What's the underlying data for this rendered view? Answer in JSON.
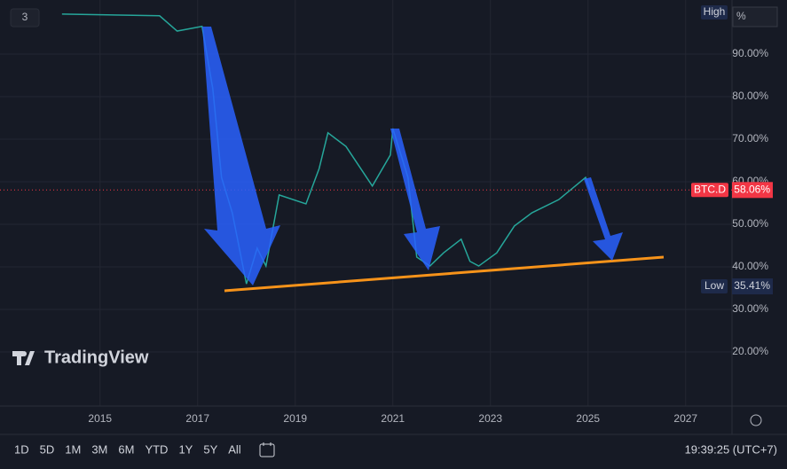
{
  "chart_data": {
    "type": "line",
    "x": [
      2014.22,
      2016.22,
      2016.58,
      2017.09,
      2017.31,
      2017.49,
      2017.71,
      2018.0,
      2018.22,
      2018.4,
      2018.67,
      2019.22,
      2019.49,
      2019.67,
      2020.04,
      2020.58,
      2020.95,
      2021.0,
      2021.31,
      2021.49,
      2021.76,
      2022.04,
      2022.4,
      2022.58,
      2022.76,
      2023.13,
      2023.49,
      2023.85,
      2024.4,
      2024.95,
      2025.04
    ],
    "series": [
      {
        "name": "BTC.D",
        "color": "#26a69a",
        "values": [
          99.4,
          99,
          95.4,
          96.5,
          81.9,
          61,
          52.7,
          36,
          44.4,
          40.2,
          56.9,
          54.8,
          63.1,
          71.5,
          68.3,
          59,
          66.3,
          72.5,
          61,
          42.3,
          40.2,
          43.3,
          46.5,
          41.3,
          40.2,
          43.3,
          49.6,
          52.7,
          55.8,
          61,
          58.06
        ]
      }
    ],
    "last": {
      "value": 58.06,
      "label": "58.06%"
    },
    "low": {
      "title": "Low",
      "value": 35.41,
      "label": "35.41%"
    },
    "high": "High",
    "scale_mode": "%",
    "xlim": [
      2012.95,
      2027.95
    ],
    "xticks": [
      2015,
      2017,
      2019,
      2021,
      2023,
      2025,
      2027
    ],
    "ylim": [
      7.3,
      102.7
    ],
    "yticks": [
      {
        "value": 20,
        "label": "20.00%"
      },
      {
        "value": 30,
        "label": "30.00%"
      },
      {
        "value": 40,
        "label": "40.00%"
      },
      {
        "value": 50,
        "label": "50.00%"
      },
      {
        "value": 60,
        "label": "60.00%"
      },
      {
        "value": 70,
        "label": "70.00%"
      },
      {
        "value": 80,
        "label": "80.00%"
      },
      {
        "value": 90,
        "label": "90.00%"
      }
    ],
    "grid": true
  },
  "ui": {
    "layout_count": "3",
    "logo": "TradingView",
    "ranges": [
      "1D",
      "5D",
      "1M",
      "3M",
      "6M",
      "YTD",
      "1Y",
      "5Y",
      "All"
    ],
    "clock": "19:39:25 (UTC+7)"
  }
}
